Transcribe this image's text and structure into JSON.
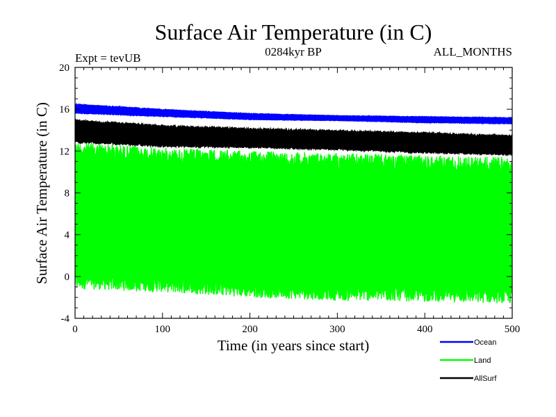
{
  "chart_data": {
    "type": "line",
    "title": "Surface Air Temperature (in C)",
    "subtitle_left": "Expt = tevUB",
    "subtitle_center": "0284kyr BP",
    "subtitle_right": "ALL_MONTHS",
    "xlabel": "Time (in years since start)",
    "ylabel": "Surface Air Temperature (in C)",
    "xlim": [
      0,
      500
    ],
    "ylim": [
      -4,
      20
    ],
    "xticks": [
      0,
      100,
      200,
      300,
      400,
      500
    ],
    "yticks": [
      -4,
      0,
      4,
      8,
      12,
      16,
      20
    ],
    "series": [
      {
        "name": "Land",
        "color": "#00ff00",
        "style": "dense band (monthly oscillation)",
        "x": [
          0,
          100,
          200,
          300,
          400,
          500
        ],
        "upper": [
          12.9,
          12.3,
          12.0,
          11.8,
          11.6,
          11.4
        ],
        "lower": [
          -1.2,
          -1.5,
          -2.0,
          -2.3,
          -2.4,
          -2.6
        ]
      },
      {
        "name": "AllSurf",
        "color": "#000000",
        "style": "dense band (monthly oscillation)",
        "x": [
          0,
          100,
          200,
          300,
          400,
          500
        ],
        "upper": [
          15.0,
          14.5,
          14.2,
          14.0,
          13.8,
          13.5
        ],
        "lower": [
          12.8,
          12.4,
          12.3,
          12.1,
          11.8,
          11.6
        ]
      },
      {
        "name": "Ocean",
        "color": "#0000ff",
        "style": "dense band (monthly oscillation)",
        "x": [
          0,
          100,
          200,
          300,
          400,
          500
        ],
        "upper": [
          16.5,
          16.0,
          15.6,
          15.4,
          15.3,
          15.2
        ],
        "lower": [
          15.6,
          15.3,
          15.0,
          14.9,
          14.7,
          14.6
        ]
      }
    ],
    "legend": [
      {
        "label": "Ocean",
        "color": "#0000ff"
      },
      {
        "label": "Land",
        "color": "#00ff00"
      },
      {
        "label": "AllSurf",
        "color": "#000000"
      }
    ],
    "legend_position": "bottom-right"
  }
}
